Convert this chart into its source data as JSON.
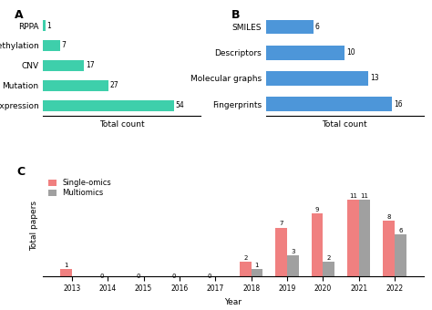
{
  "panel_A": {
    "categories": [
      "Gene expression",
      "Mutation",
      "CNV",
      "Methylation",
      "RPPA"
    ],
    "values": [
      54,
      27,
      17,
      7,
      1
    ],
    "color": "#3ecfab",
    "xlabel": "Total count"
  },
  "panel_B": {
    "categories": [
      "Fingerprints",
      "Molecular graphs",
      "Descriptors",
      "SMILES"
    ],
    "values": [
      16,
      13,
      10,
      6
    ],
    "color": "#4d96d9",
    "xlabel": "Total count"
  },
  "panel_C": {
    "years": [
      "2013",
      "2014",
      "2015",
      "2016",
      "2017",
      "2018",
      "2019",
      "2020",
      "2021",
      "2022"
    ],
    "single_omics": [
      1,
      0,
      0,
      0,
      0,
      2,
      7,
      9,
      11,
      8
    ],
    "multiomics": [
      0,
      0,
      0,
      0,
      0,
      1,
      3,
      2,
      11,
      6
    ],
    "color_single": "#f08080",
    "color_multi": "#a0a0a0",
    "xlabel": "Year",
    "ylabel": "Total papers",
    "legend_single": "Single-omics",
    "legend_multi": "Multiomics"
  },
  "bg_color": "#ffffff",
  "label_fontsize": 6.5,
  "tick_fontsize": 5.5,
  "panel_label_fontsize": 9
}
